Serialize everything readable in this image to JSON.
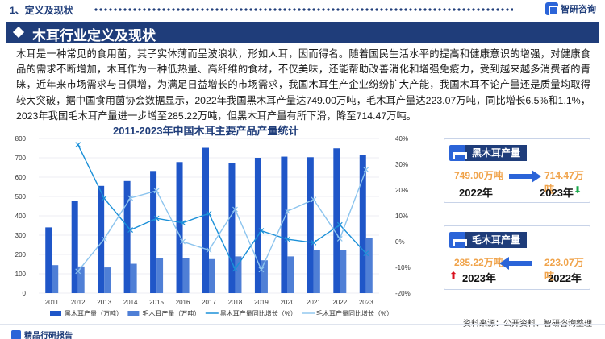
{
  "header": {
    "section_label": "1、定义及现状",
    "logo_text": "智研咨询"
  },
  "banner": {
    "title": "木耳行业定义及现状"
  },
  "body": {
    "paragraph": "木耳是一种常见的食用菌，其子实体薄而呈波浪状，形如人耳，因而得名。随着国民生活水平的提高和健康意识的增强，对健康食品的需求不断增加，木耳作为一种低热量、高纤维的食材，不仅美味，还能帮助改善消化和增强免疫力，受到越来越多消费者的青睐，近年来市场需求与日俱增，为满足日益增长的市场需求，我国木耳生产企业纷纷扩大产能，我国木耳不论产量还是质量均取得较大突破，据中国食用菌协会数据显示，2022年我国黑木耳产量达749.00万吨，毛木耳产量达223.07万吨，同比增长6.5%和1.1%，2023年我国毛木耳产量进一步增至285.22万吨，但黑木耳产量有所下滑，降至714.47万吨。"
  },
  "chart_data": {
    "type": "bar",
    "title": "2011-2023年中国木耳主要产品产量统计",
    "categories": [
      "2011",
      "2012",
      "2013",
      "2014",
      "2015",
      "2016",
      "2017",
      "2018",
      "2019",
      "2020",
      "2021",
      "2022",
      "2023"
    ],
    "left_axis": {
      "ylim": [
        0,
        800
      ],
      "ticks": [
        "0",
        "100",
        "200",
        "300",
        "400",
        "500",
        "600",
        "700",
        "800"
      ]
    },
    "right_axis": {
      "ylim": [
        -20,
        40
      ],
      "ticks": [
        "-20%",
        "-10%",
        "0%",
        "10%",
        "20%",
        "30%",
        "40%"
      ]
    },
    "series": [
      {
        "name": "黑木耳产量（万吨）",
        "kind": "bar",
        "color": "#1f56c8",
        "values": [
          340,
          475,
          555,
          580,
          632,
          678,
          752,
          672,
          700,
          706,
          703,
          749,
          714.47
        ]
      },
      {
        "name": "毛木耳产量（万吨）",
        "kind": "bar",
        "color": "#4f7fd6",
        "values": [
          145,
          138,
          133,
          152,
          182,
          182,
          176,
          190,
          170,
          190,
          221,
          223.07,
          285.22
        ]
      },
      {
        "name": "黑木耳产量同比增长（%）",
        "kind": "line",
        "color": "#1b90d8",
        "values": [
          null,
          37.6,
          16.8,
          4.5,
          9.0,
          7.3,
          10.9,
          -10.6,
          4.2,
          0.9,
          -0.4,
          6.5,
          -4.6
        ]
      },
      {
        "name": "毛木耳产量同比增长（%）",
        "kind": "line",
        "color": "#8cc4ee",
        "values": [
          null,
          -11.5,
          1.0,
          16.9,
          19.7,
          0.0,
          -3.3,
          12.5,
          -10.9,
          11.8,
          16.3,
          1.1,
          27.9
        ]
      }
    ]
  },
  "card_black": {
    "label": "黑木耳产量",
    "from_value": "749.00万吨",
    "from_year": "2022年",
    "to_value": "714.47万吨",
    "to_year": "2023年",
    "trend": "down"
  },
  "card_mao": {
    "label": "毛木耳产量",
    "left_value": "285.22万吨",
    "left_year": "2023年",
    "right_value": "223.07万吨",
    "right_year": "2022年",
    "trend": "up"
  },
  "footer": {
    "left_text": "精品行研报告",
    "source": "资料来源：公开资料、智研咨询整理"
  },
  "colors": {
    "primary": "#1f3d7a",
    "accent": "#2b64d8",
    "orange": "#f0a34a",
    "down": "#18a84a",
    "up": "#d9121f"
  }
}
